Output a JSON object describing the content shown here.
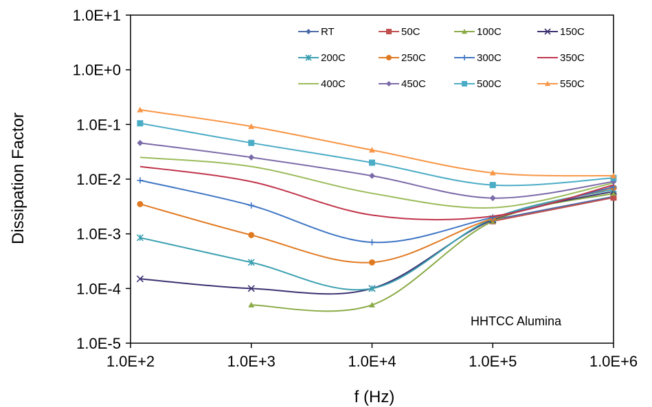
{
  "chart_data": {
    "type": "line",
    "xlabel": "f (Hz)",
    "ylabel": "Dissipation Factor",
    "x_scale": "log",
    "y_scale": "log",
    "xlim": [
      100,
      1000000
    ],
    "ylim": [
      1e-05,
      10
    ],
    "x_ticks": [
      100,
      1000,
      10000,
      100000,
      1000000
    ],
    "x_tick_labels": [
      "1.0E+2",
      "1.0E+3",
      "1.0E+4",
      "1.0E+5",
      "1.0E+6"
    ],
    "y_ticks": [
      10,
      1,
      0.1,
      0.01,
      0.001,
      0.0001,
      1e-05
    ],
    "y_tick_labels": [
      "1.0E+1",
      "1.0E+0",
      "1.0E-1",
      "1.0E-2",
      "1.0E-3",
      "1.0E-4",
      "1.0E-5"
    ],
    "grid": false,
    "legend_position": "top",
    "annotation": "HHTCC Alumina",
    "series": [
      {
        "name": "RT",
        "color": "#4a6aa8",
        "marker": "diamond",
        "x": [
          100000,
          1000000
        ],
        "y": [
          0.0018,
          0.0048
        ]
      },
      {
        "name": "50C",
        "color": "#c0504d",
        "marker": "square",
        "x": [
          100000,
          1000000
        ],
        "y": [
          0.0017,
          0.0046
        ]
      },
      {
        "name": "100C",
        "color": "#8aaa45",
        "marker": "triangle",
        "x": [
          1000,
          10000,
          100000,
          1000000
        ],
        "y": [
          5e-05,
          5e-05,
          0.0017,
          0.0055
        ]
      },
      {
        "name": "150C",
        "color": "#3a3070",
        "marker": "x",
        "x": [
          120,
          1000,
          10000,
          100000,
          1000000
        ],
        "y": [
          0.00015,
          0.0001,
          0.0001,
          0.0018,
          0.006
        ]
      },
      {
        "name": "200C",
        "color": "#3a9fb0",
        "marker": "star",
        "x": [
          120,
          1000,
          10000,
          100000,
          1000000
        ],
        "y": [
          0.00085,
          0.0003,
          0.0001,
          0.0019,
          0.0065
        ]
      },
      {
        "name": "250C",
        "color": "#e07a22",
        "marker": "circle",
        "x": [
          120,
          1000,
          10000,
          100000,
          1000000
        ],
        "y": [
          0.0035,
          0.00095,
          0.0003,
          0.0019,
          0.007
        ]
      },
      {
        "name": "300C",
        "color": "#3e75c4",
        "marker": "plus",
        "x": [
          120,
          1000,
          10000,
          100000,
          1000000
        ],
        "y": [
          0.0095,
          0.0033,
          0.0007,
          0.002,
          0.0072
        ]
      },
      {
        "name": "350C",
        "color": "#c0334a",
        "marker": "none",
        "x": [
          120,
          1000,
          10000,
          100000,
          1000000
        ],
        "y": [
          0.017,
          0.009,
          0.0022,
          0.0021,
          0.0078
        ]
      },
      {
        "name": "400C",
        "color": "#9bbb59",
        "marker": "none",
        "x": [
          120,
          1000,
          10000,
          100000,
          1000000
        ],
        "y": [
          0.025,
          0.017,
          0.0055,
          0.003,
          0.0085
        ]
      },
      {
        "name": "450C",
        "color": "#7b6aa8",
        "marker": "diamond",
        "x": [
          120,
          1000,
          10000,
          100000,
          1000000
        ],
        "y": [
          0.046,
          0.025,
          0.0115,
          0.0045,
          0.009
        ]
      },
      {
        "name": "500C",
        "color": "#4bacc6",
        "marker": "square",
        "x": [
          120,
          1000,
          10000,
          100000,
          1000000
        ],
        "y": [
          0.105,
          0.046,
          0.02,
          0.0078,
          0.0105
        ]
      },
      {
        "name": "550C",
        "color": "#f79646",
        "marker": "triangle",
        "x": [
          120,
          1000,
          10000,
          100000,
          1000000
        ],
        "y": [
          0.185,
          0.092,
          0.034,
          0.013,
          0.0115
        ]
      }
    ]
  }
}
